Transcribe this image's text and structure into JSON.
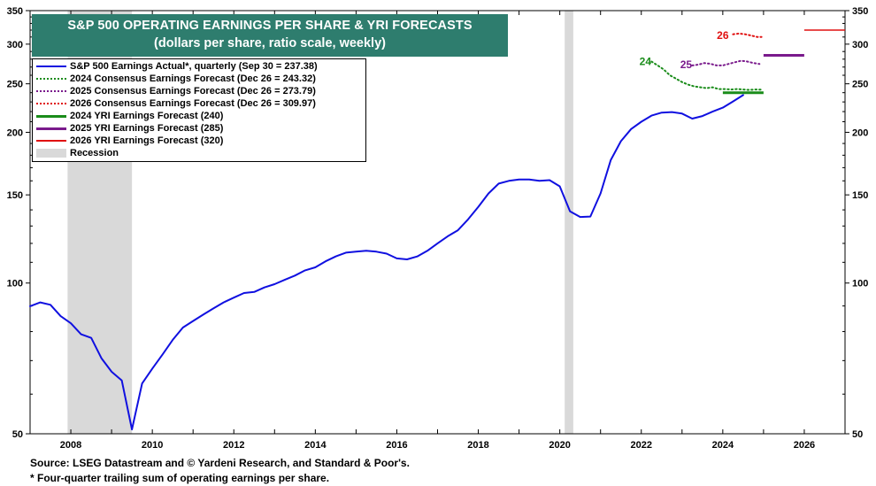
{
  "title": "S&P 500 OPERATING EARNINGS PER SHARE & YRI FORECASTS",
  "subtitle": "(dollars per share, ratio scale, weekly)",
  "footnotes": {
    "source": "Source: LSEG Datastream and © Yardeni Research, and Standard & Poor's.",
    "note": "* Four-quarter trailing sum of operating earnings per share."
  },
  "colors": {
    "actual": "#1010e0",
    "c2024": "#1a8c1a",
    "c2025": "#7a1a8c",
    "c2026": "#e01010",
    "recession": "#d9d9d9",
    "title_bg": "#2e7d6e"
  },
  "chart_data": {
    "type": "line",
    "title": "S&P 500 OPERATING EARNINGS PER SHARE & YRI FORECASTS",
    "subtitle": "(dollars per share, ratio scale, weekly)",
    "y_scale": "log",
    "xlim": [
      2007.0,
      2027.0
    ],
    "ylim": [
      50,
      350
    ],
    "x_ticks": [
      2008,
      2010,
      2012,
      2014,
      2016,
      2018,
      2020,
      2022,
      2024,
      2026
    ],
    "y_ticks": [
      50,
      100,
      150,
      200,
      250,
      300,
      350
    ],
    "grid": false,
    "legend_position": "top-left",
    "legend": [
      {
        "label": "S&P 500 Earnings Actual*, quarterly (Sep 30 = 237.38)",
        "style": "solid",
        "color": "#1010e0"
      },
      {
        "label": "2024 Consensus Earnings Forecast (Dec 26 = 243.32)",
        "style": "dotted",
        "color": "#1a8c1a"
      },
      {
        "label": "2025 Consensus Earnings Forecast (Dec 26 = 273.79)",
        "style": "dotted",
        "color": "#7a1a8c"
      },
      {
        "label": "2026 Consensus Earnings Forecast (Dec 26 = 309.97)",
        "style": "dotted",
        "color": "#e01010"
      },
      {
        "label": "2024 YRI Earnings Forecast (240)",
        "style": "solid-thick",
        "color": "#1a8c1a"
      },
      {
        "label": "2025 YRI Earnings Forecast (285)",
        "style": "solid-thick",
        "color": "#7a1a8c"
      },
      {
        "label": "2026 YRI Earnings Forecast (320)",
        "style": "solid",
        "color": "#e01010"
      },
      {
        "label": "Recession",
        "style": "block",
        "color": "#d9d9d9"
      }
    ],
    "recessions": [
      [
        2007.92,
        2009.5
      ],
      [
        2020.12,
        2020.33
      ]
    ],
    "annotations": [
      {
        "text": "24",
        "x": 2022.1,
        "y": 277,
        "color": "#1a8c1a"
      },
      {
        "text": "25",
        "x": 2023.1,
        "y": 273,
        "color": "#7a1a8c"
      },
      {
        "text": "26",
        "x": 2024.0,
        "y": 312,
        "color": "#e01010"
      }
    ],
    "series": [
      {
        "name": "S&P 500 Earnings Actual*, quarterly (Sep 30 = 237.38)",
        "style": "solid",
        "x": [
          2007.0,
          2007.25,
          2007.5,
          2007.75,
          2008.0,
          2008.25,
          2008.5,
          2008.75,
          2009.0,
          2009.25,
          2009.5,
          2009.75,
          2010.0,
          2010.25,
          2010.5,
          2010.75,
          2011.0,
          2011.25,
          2011.5,
          2011.75,
          2012.0,
          2012.25,
          2012.5,
          2012.75,
          2013.0,
          2013.25,
          2013.5,
          2013.75,
          2014.0,
          2014.25,
          2014.5,
          2014.75,
          2015.0,
          2015.25,
          2015.5,
          2015.75,
          2016.0,
          2016.25,
          2016.5,
          2016.75,
          2017.0,
          2017.25,
          2017.5,
          2017.75,
          2018.0,
          2018.25,
          2018.5,
          2018.75,
          2019.0,
          2019.25,
          2019.5,
          2019.75,
          2020.0,
          2020.25,
          2020.5,
          2020.75,
          2021.0,
          2021.25,
          2021.5,
          2021.75,
          2022.0,
          2022.25,
          2022.5,
          2022.75,
          2023.0,
          2023.25,
          2023.5,
          2023.75,
          2024.0,
          2024.25,
          2024.5
        ],
        "values": [
          89.9,
          91.5,
          90.5,
          85.9,
          83.1,
          79.0,
          77.7,
          70.8,
          66.5,
          63.9,
          51.0,
          63.0,
          67.5,
          72.0,
          77.0,
          81.5,
          84.0,
          86.5,
          89.0,
          91.5,
          93.5,
          95.5,
          96.0,
          98.0,
          99.5,
          101.5,
          103.5,
          106.0,
          107.5,
          110.5,
          113.0,
          115.0,
          115.5,
          116.0,
          115.5,
          114.5,
          112.0,
          111.5,
          113.0,
          116.0,
          120.0,
          124.0,
          127.5,
          134.0,
          142.0,
          151.0,
          158.0,
          160.0,
          161.0,
          161.0,
          160.0,
          160.5,
          156.0,
          139.0,
          135.5,
          135.8,
          151.0,
          176.0,
          192.0,
          203.0,
          210.0,
          216.0,
          219.0,
          219.5,
          218.0,
          213.0,
          215.5,
          220.0,
          224.0,
          230.5,
          237.38
        ]
      },
      {
        "name": "2024 Consensus Earnings Forecast (Dec 26 = 243.32)",
        "style": "dotted",
        "x": [
          2022.25,
          2022.4,
          2022.55,
          2022.7,
          2022.85,
          2023.0,
          2023.15,
          2023.3,
          2023.45,
          2023.6,
          2023.75,
          2023.9,
          2024.05,
          2024.2,
          2024.35,
          2024.5,
          2024.65,
          2024.8,
          2024.95
        ],
        "values": [
          277,
          272,
          267,
          260,
          256,
          252,
          249,
          247,
          246,
          245,
          246,
          244,
          244,
          243.5,
          244,
          243.5,
          243,
          243.5,
          243.32
        ]
      },
      {
        "name": "2025 Consensus Earnings Forecast (Dec 26 = 273.79)",
        "style": "dotted",
        "x": [
          2023.25,
          2023.4,
          2023.55,
          2023.7,
          2023.85,
          2024.0,
          2024.15,
          2024.3,
          2024.45,
          2024.6,
          2024.75,
          2024.9
        ],
        "values": [
          272,
          273,
          275,
          274,
          272,
          272,
          274,
          276,
          278,
          277,
          275,
          273.79
        ]
      },
      {
        "name": "2026 Consensus Earnings Forecast (Dec 26 = 309.97)",
        "style": "dotted",
        "x": [
          2024.25,
          2024.4,
          2024.55,
          2024.7,
          2024.85,
          2024.95
        ],
        "values": [
          314,
          315,
          314,
          312,
          310,
          309.97
        ]
      },
      {
        "name": "2024 YRI Earnings Forecast (240)",
        "style": "solid-thick",
        "x": [
          2024.0,
          2025.0
        ],
        "values": [
          240,
          240
        ]
      },
      {
        "name": "2025 YRI Earnings Forecast (285)",
        "style": "solid-thick",
        "x": [
          2025.0,
          2026.0
        ],
        "values": [
          285,
          285
        ]
      },
      {
        "name": "2026 YRI Earnings Forecast (320)",
        "style": "solid",
        "x": [
          2026.0,
          2027.0
        ],
        "values": [
          320,
          320
        ]
      }
    ]
  }
}
